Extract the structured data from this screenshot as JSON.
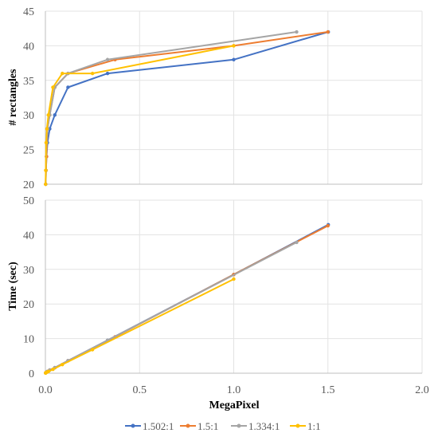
{
  "chart_data": [
    {
      "type": "line",
      "ylabel": "# rectangles",
      "ylim": [
        20,
        45
      ],
      "yticks": [
        "20",
        "25",
        "30",
        "35",
        "40",
        "45"
      ],
      "xlim": [
        0,
        2
      ],
      "grid": true,
      "series": [
        {
          "name": "1.502:1",
          "color": "#4472c4",
          "x": [
            0.0015,
            0.003,
            0.006,
            0.011,
            0.023,
            0.05,
            0.12,
            0.33,
            1.0,
            1.502
          ],
          "y": [
            20,
            22,
            24,
            26,
            28,
            30,
            34,
            36,
            38,
            42
          ]
        },
        {
          "name": "1.5:1",
          "color": "#ed7d31",
          "x": [
            0.0015,
            0.003,
            0.006,
            0.011,
            0.023,
            0.05,
            0.12,
            0.37,
            1.0,
            1.5
          ],
          "y": [
            20,
            22,
            24,
            28,
            30,
            34,
            36,
            38,
            40,
            42
          ]
        },
        {
          "name": "1.334:1",
          "color": "#a5a5a5",
          "x": [
            0.0013,
            0.003,
            0.006,
            0.011,
            0.023,
            0.05,
            0.12,
            0.33,
            1.334
          ],
          "y": [
            20,
            22,
            26,
            28,
            30,
            34,
            36,
            38,
            42
          ]
        },
        {
          "name": "1:1",
          "color": "#ffc000",
          "x": [
            0.001,
            0.002,
            0.004,
            0.008,
            0.016,
            0.04,
            0.09,
            0.25,
            1.0
          ],
          "y": [
            20,
            22,
            26,
            28,
            30,
            34,
            36,
            36,
            40
          ]
        }
      ]
    },
    {
      "type": "line",
      "xlabel": "MegaPixel",
      "ylabel": "Time (sec)",
      "ylim": [
        0,
        50
      ],
      "yticks": [
        "0",
        "10",
        "20",
        "30",
        "40",
        "50"
      ],
      "xlim": [
        0,
        2
      ],
      "xticks": [
        "0.0",
        "0.5",
        "1.0",
        "1.5",
        "2.0"
      ],
      "grid": true,
      "series": [
        {
          "name": "1.502:1",
          "color": "#4472c4",
          "x": [
            0.0015,
            0.003,
            0.006,
            0.011,
            0.023,
            0.05,
            0.12,
            0.33,
            1.0,
            1.502
          ],
          "y": [
            0.1,
            0.15,
            0.3,
            0.5,
            0.9,
            1.6,
            3.6,
            9.5,
            28.5,
            42.9
          ]
        },
        {
          "name": "1.5:1",
          "color": "#ed7d31",
          "x": [
            0.0015,
            0.003,
            0.006,
            0.011,
            0.023,
            0.05,
            0.12,
            0.37,
            1.0,
            1.5
          ],
          "y": [
            0.1,
            0.15,
            0.3,
            0.5,
            0.9,
            1.6,
            3.6,
            10.5,
            28.5,
            42.6
          ]
        },
        {
          "name": "1.334:1",
          "color": "#a5a5a5",
          "x": [
            0.0013,
            0.003,
            0.006,
            0.011,
            0.023,
            0.05,
            0.12,
            0.33,
            1.334
          ],
          "y": [
            0.1,
            0.15,
            0.3,
            0.5,
            0.9,
            1.6,
            3.6,
            9.5,
            37.8
          ]
        },
        {
          "name": "1:1",
          "color": "#ffc000",
          "x": [
            0.001,
            0.002,
            0.004,
            0.008,
            0.016,
            0.04,
            0.09,
            0.25,
            1.0
          ],
          "y": [
            0.05,
            0.1,
            0.2,
            0.3,
            0.5,
            1.1,
            2.5,
            6.8,
            27.2
          ]
        }
      ]
    }
  ],
  "legend": {
    "placement": "bottom",
    "items": [
      {
        "label": "1.502:1",
        "color": "#4472c4"
      },
      {
        "label": "1.5:1",
        "color": "#ed7d31"
      },
      {
        "label": "1.334:1",
        "color": "#a5a5a5"
      },
      {
        "label": "1:1",
        "color": "#ffc000"
      }
    ]
  }
}
